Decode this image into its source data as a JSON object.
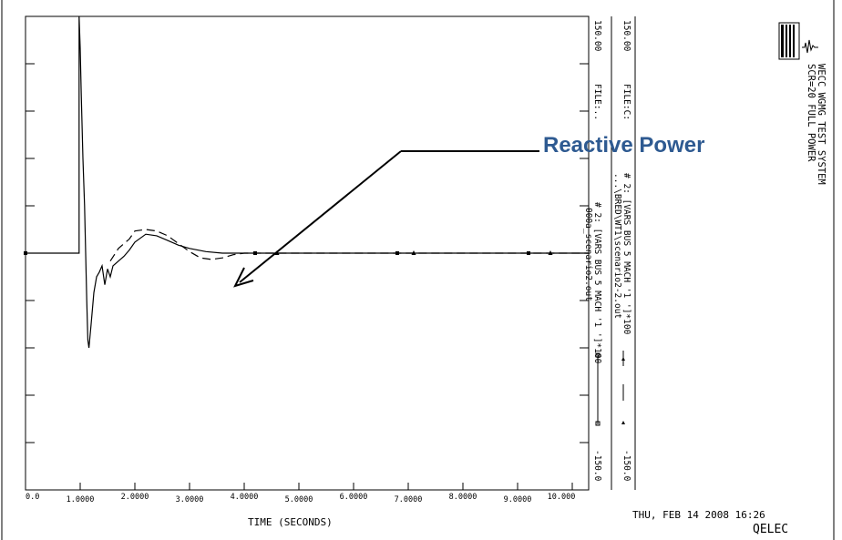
{
  "chart_data": {
    "type": "line",
    "xlabel": "TIME  (SECONDS)",
    "x_ticks": [
      "0.0",
      "1.0000",
      "2.0000",
      "3.0000",
      "4.0000",
      "5.0000",
      "6.0000",
      "7.0000",
      "8.0000",
      "9.0000",
      "10.000"
    ],
    "xlim": [
      0,
      10.3
    ],
    "ylim": [
      -150,
      150
    ],
    "y_axis_max_label": "150.00",
    "y_axis_max_label2": "150.00",
    "y_axis_min_label": "-150.0",
    "y_axis_min_label2": "-150.0",
    "series": [
      {
        "name": "# 2: [VARS BUS 5 MACH '1 ']*100",
        "file": "000a_scenario2.out",
        "file_label": "FILE:..",
        "style": "solid",
        "color": "#000000",
        "x": [
          0,
          0.98,
          0.98,
          1.0,
          1.02,
          1.05,
          1.08,
          1.12,
          1.14,
          1.16,
          1.2,
          1.25,
          1.3,
          1.35,
          1.4,
          1.45,
          1.5,
          1.55,
          1.6,
          1.7,
          1.8,
          1.9,
          2.0,
          2.2,
          2.4,
          2.6,
          2.8,
          3.0,
          3.3,
          3.6,
          4.0,
          5.0,
          6.0,
          7.0,
          8.0,
          9.0,
          10.0,
          10.3
        ],
        "y": [
          0,
          0,
          150,
          130,
          100,
          60,
          30,
          -30,
          -55,
          -60,
          -45,
          -25,
          -15,
          -12,
          -8,
          -20,
          -10,
          -15,
          -8,
          -5,
          -2,
          2,
          7,
          12,
          11,
          8,
          5,
          3,
          1,
          0,
          0,
          0,
          0,
          0,
          0,
          0,
          0,
          0
        ]
      },
      {
        "name": "# 2: [VARS BUS 5 MACH '1 ']*100",
        "file": "...\\BRED\\WT1\\scenario2-2.out",
        "file_label": "FILE:C:",
        "style": "dashed",
        "color": "#000000",
        "x": [
          1.55,
          1.7,
          1.9,
          2.0,
          2.2,
          2.4,
          2.6,
          2.8,
          3.0,
          3.2,
          3.4,
          3.6,
          3.8,
          4.0,
          4.3,
          5.0,
          6.0,
          10.3
        ],
        "y": [
          -5,
          3,
          9,
          14,
          15,
          14,
          11,
          6,
          1,
          -3,
          -4,
          -3,
          -1,
          0,
          0,
          0,
          0,
          0
        ]
      }
    ],
    "annotation": "Reactive Power",
    "title_lines": [
      "WECC WGMG TEST SYSTEM",
      "SCR=20 FULL POWER"
    ],
    "timestamp": "THU, FEB 14 2008   16:26",
    "footer": "QELEC"
  }
}
